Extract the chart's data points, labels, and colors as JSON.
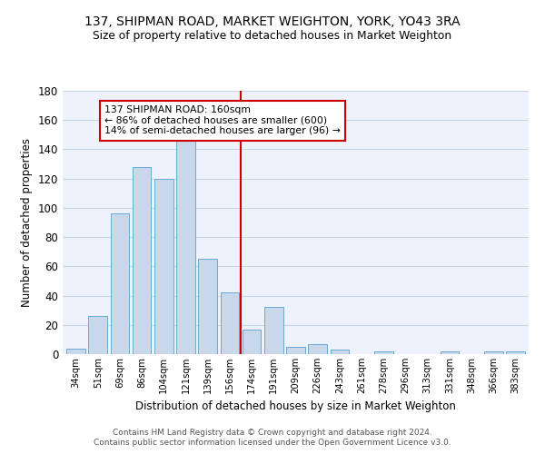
{
  "title": "137, SHIPMAN ROAD, MARKET WEIGHTON, YORK, YO43 3RA",
  "subtitle": "Size of property relative to detached houses in Market Weighton",
  "xlabel": "Distribution of detached houses by size in Market Weighton",
  "ylabel": "Number of detached properties",
  "categories": [
    "34sqm",
    "51sqm",
    "69sqm",
    "86sqm",
    "104sqm",
    "121sqm",
    "139sqm",
    "156sqm",
    "174sqm",
    "191sqm",
    "209sqm",
    "226sqm",
    "243sqm",
    "261sqm",
    "278sqm",
    "296sqm",
    "313sqm",
    "331sqm",
    "348sqm",
    "366sqm",
    "383sqm"
  ],
  "values": [
    4,
    26,
    96,
    128,
    120,
    151,
    65,
    42,
    17,
    32,
    5,
    7,
    3,
    0,
    2,
    0,
    0,
    2,
    0,
    2,
    2
  ],
  "bar_color": "#c8d8ea",
  "bar_edge_color": "#6aaad4",
  "bar_edge_width": 0.7,
  "grid_color": "#c8d4e8",
  "background_color": "#eef2fc",
  "vline_x": 7.5,
  "vline_color": "#cc0000",
  "annotation_text": "137 SHIPMAN ROAD: 160sqm\n← 86% of detached houses are smaller (600)\n14% of semi-detached houses are larger (96) →",
  "annotation_box_color": "#cc0000",
  "ylim": [
    0,
    180
  ],
  "yticks": [
    0,
    20,
    40,
    60,
    80,
    100,
    120,
    140,
    160,
    180
  ],
  "footer_line1": "Contains HM Land Registry data © Crown copyright and database right 2024.",
  "footer_line2": "Contains public sector information licensed under the Open Government Licence v3.0."
}
